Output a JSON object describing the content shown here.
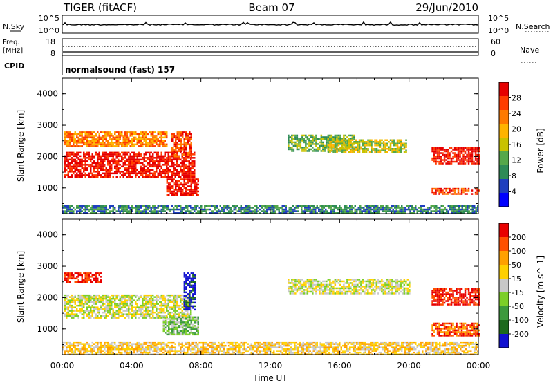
{
  "header": {
    "station": "TIGER (fitACF)",
    "beam": "Beam 07",
    "date": "29/Jun/2010"
  },
  "top_panels": {
    "nsky_label": "N.Sky",
    "nsky_ticks": [
      "10^5",
      "10^0"
    ],
    "nsearch_label": "N.Search",
    "nsearch_ticks": [
      "10^5",
      "10^0"
    ],
    "freq_label_line1": "Freq.",
    "freq_label_line2": "[MHz]",
    "freq_ticks": [
      "18",
      "8"
    ],
    "nave_label": "Nave",
    "nave_ticks": [
      "60",
      "0"
    ],
    "cpid_label": "CPID",
    "cpid_text": "normalsound (fast) 157"
  },
  "chart_data": [
    {
      "type": "heatmap",
      "panel": "power",
      "ylabel": "Slant Range [km]",
      "ylim": [
        180,
        4500
      ],
      "yticks": [
        1000,
        2000,
        3000,
        4000
      ],
      "xlim": [
        0,
        24
      ],
      "colorbar_label": "Power [dB]",
      "colorbar_ticks": [
        4,
        8,
        12,
        16,
        20,
        24,
        28
      ],
      "colors": [
        "#0000ff",
        "#1f3fbf",
        "#2e8b57",
        "#55a84a",
        "#c9c200",
        "#ffb400",
        "#ff7a00",
        "#ff3c00",
        "#e60000"
      ],
      "regions": [
        {
          "x0": 0.1,
          "x1": 7.6,
          "y0": 1350,
          "y1": 2150,
          "level": 8
        },
        {
          "x0": 0.1,
          "x1": 6.0,
          "y0": 2350,
          "y1": 2800,
          "level": 6
        },
        {
          "x0": 6.0,
          "x1": 7.8,
          "y0": 800,
          "y1": 1300,
          "level": 8
        },
        {
          "x0": 6.3,
          "x1": 7.4,
          "y0": 2000,
          "y1": 2800,
          "level": 7
        },
        {
          "x0": 13.0,
          "x1": 16.8,
          "y0": 2200,
          "y1": 2700,
          "level": 3
        },
        {
          "x0": 15.3,
          "x1": 19.8,
          "y0": 2150,
          "y1": 2550,
          "level": 4
        },
        {
          "x0": 21.3,
          "x1": 24.0,
          "y0": 1800,
          "y1": 2300,
          "level": 8
        },
        {
          "x0": 21.3,
          "x1": 24.0,
          "y0": 800,
          "y1": 1000,
          "level": 7
        },
        {
          "x0": 0.0,
          "x1": 24.0,
          "y0": 180,
          "y1": 450,
          "level": 2
        }
      ]
    },
    {
      "type": "heatmap",
      "panel": "velocity",
      "ylabel": "Slant Range [km]",
      "ylim": [
        180,
        4500
      ],
      "yticks": [
        1000,
        2000,
        3000,
        4000
      ],
      "xlim": [
        0,
        24
      ],
      "xticks": [
        "00:00",
        "04:00",
        "08:00",
        "12:00",
        "16:00",
        "20:00",
        "00:00"
      ],
      "xlabel": "Time UT",
      "colorbar_label": "Velocity [m s^-1]",
      "colorbar_ticks": [
        200,
        100,
        50,
        15,
        -15,
        -50,
        -100,
        -200
      ],
      "colors": [
        "#1010d0",
        "#1c6a1c",
        "#3c9a3c",
        "#7ccf28",
        "#c8c8c8",
        "#ffd000",
        "#ffa000",
        "#ff5000",
        "#e80000"
      ],
      "regions": [
        {
          "x0": 0.1,
          "x1": 7.4,
          "y0": 1350,
          "y1": 2100,
          "level": 4
        },
        {
          "x0": 0.1,
          "x1": 2.2,
          "y0": 2500,
          "y1": 2800,
          "level": 8
        },
        {
          "x0": 5.8,
          "x1": 7.8,
          "y0": 800,
          "y1": 1400,
          "level": 3
        },
        {
          "x0": 7.0,
          "x1": 7.6,
          "y0": 1600,
          "y1": 2800,
          "level": 0
        },
        {
          "x0": 13.0,
          "x1": 20.0,
          "y0": 2150,
          "y1": 2600,
          "level": 4
        },
        {
          "x0": 21.3,
          "x1": 24.0,
          "y0": 1800,
          "y1": 2300,
          "level": 8
        },
        {
          "x0": 21.3,
          "x1": 24.0,
          "y0": 800,
          "y1": 1200,
          "level": 7
        },
        {
          "x0": 0.0,
          "x1": 24.0,
          "y0": 180,
          "y1": 600,
          "level": 5
        }
      ]
    }
  ]
}
